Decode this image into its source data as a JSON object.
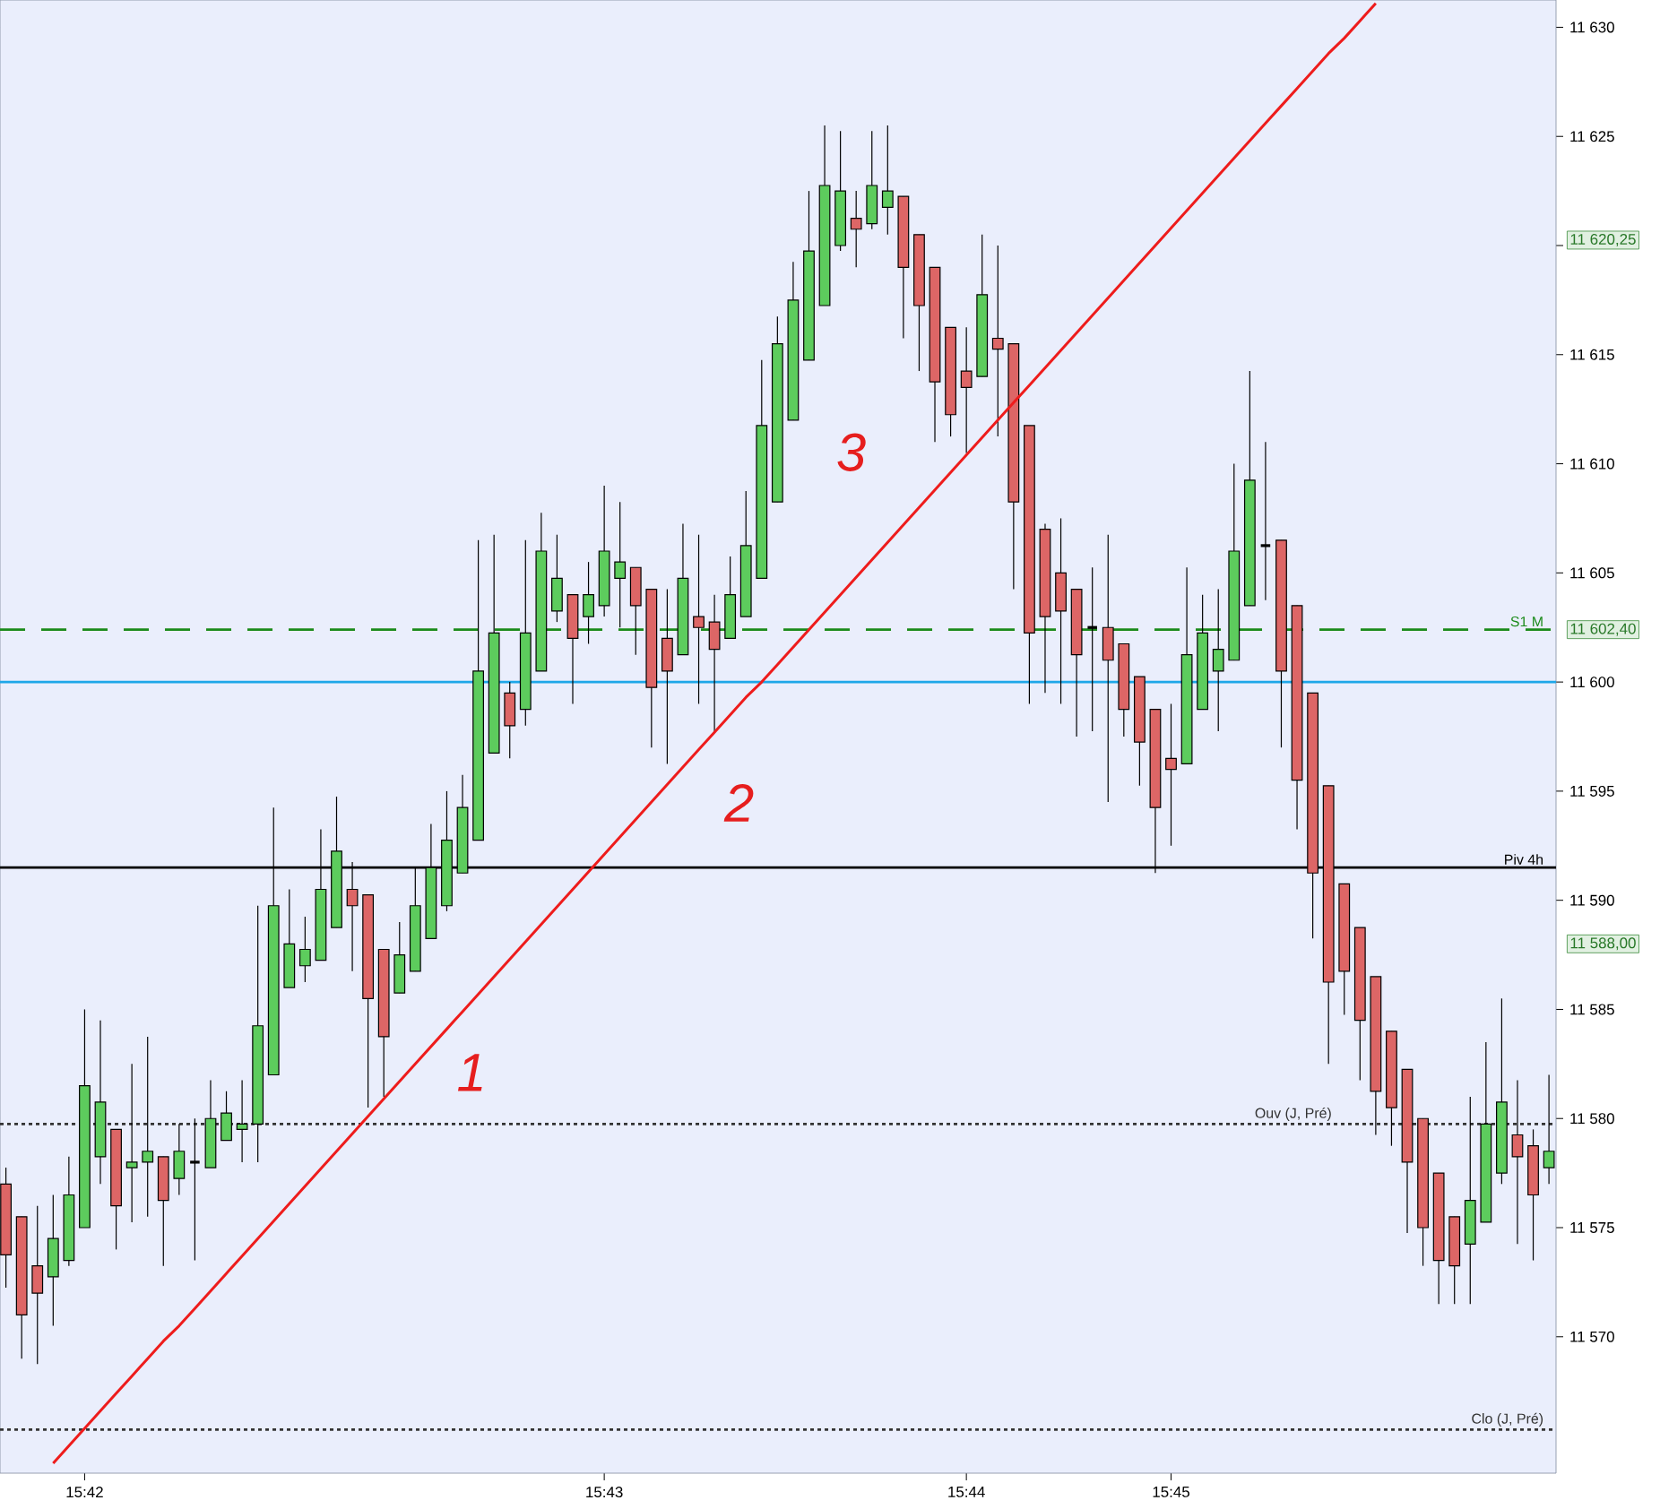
{
  "chart_data": {
    "type": "candlestick",
    "categories": [
      null,
      null,
      null,
      null,
      null,
      "15:42",
      null,
      null,
      null,
      null,
      null,
      null,
      null,
      null,
      null,
      null,
      null,
      null,
      null,
      null,
      null,
      null,
      null,
      null,
      null,
      null,
      null,
      null,
      null,
      null,
      null,
      null,
      null,
      null,
      null,
      null,
      null,
      null,
      "15:43",
      null,
      null,
      null,
      null,
      null,
      null,
      null,
      null,
      null,
      null,
      null,
      null,
      null,
      null,
      null,
      null,
      null,
      null,
      null,
      null,
      null,
      null,
      "15:44",
      null,
      null,
      null,
      null,
      null,
      null,
      null,
      null,
      null,
      null,
      null,
      null,
      "15:45",
      null,
      null,
      null,
      null,
      null,
      null,
      null,
      null,
      null,
      null,
      null,
      null,
      null,
      null,
      null,
      null,
      null,
      null,
      null,
      null,
      null,
      null,
      null,
      null
    ],
    "ohlc": [
      [
        11577,
        11577.75,
        11572.25,
        11573.75
      ],
      [
        11575.5,
        11575.5,
        11569,
        11571
      ],
      [
        11573.25,
        11576,
        11568.75,
        11572
      ],
      [
        11572.75,
        11576.5,
        11570.5,
        11574.5
      ],
      [
        11573.5,
        11578.25,
        11573.25,
        11576.5
      ],
      [
        11575,
        11585,
        11575,
        11581.5
      ],
      [
        11578.25,
        11584.5,
        11577,
        11580.75
      ],
      [
        11579.5,
        11579.5,
        11574,
        11576
      ],
      [
        11577.75,
        11582.5,
        11575.25,
        11578
      ],
      [
        11578,
        11583.75,
        11575.5,
        11578.5
      ],
      [
        11578.25,
        11578.25,
        11573.25,
        11576.25
      ],
      [
        11577.25,
        11579.75,
        11576.5,
        11578.5
      ],
      [
        11578,
        11580,
        11573.5,
        11578
      ],
      [
        11577.75,
        11581.75,
        11577.75,
        11580
      ],
      [
        11579,
        11581.25,
        11579,
        11580.25
      ],
      [
        11579.5,
        11581.75,
        11578,
        11579.75
      ],
      [
        11579.75,
        11589.75,
        11578,
        11584.25
      ],
      [
        11582,
        11594.25,
        11582,
        11589.75
      ],
      [
        11586,
        11590.5,
        11586,
        11588
      ],
      [
        11587,
        11589.25,
        11586.25,
        11587.75
      ],
      [
        11587.25,
        11593.25,
        11587.25,
        11590.5
      ],
      [
        11588.75,
        11594.75,
        11588.75,
        11592.25
      ],
      [
        11590.5,
        11591.75,
        11586.75,
        11589.75
      ],
      [
        11590.25,
        11590.25,
        11580.5,
        11585.5
      ],
      [
        11587.75,
        11587.75,
        11581,
        11583.75
      ],
      [
        11585.75,
        11589,
        11585.75,
        11587.5
      ],
      [
        11586.75,
        11591.5,
        11586.75,
        11589.75
      ],
      [
        11588.25,
        11593.5,
        11588.25,
        11591.5
      ],
      [
        11589.75,
        11595,
        11589.5,
        11592.75
      ],
      [
        11591.25,
        11595.75,
        11591.25,
        11594.25
      ],
      [
        11592.75,
        11606.5,
        11592.75,
        11600.5
      ],
      [
        11596.75,
        11606.75,
        11596.75,
        11602.25
      ],
      [
        11599.5,
        11600,
        11596.5,
        11598
      ],
      [
        11598.75,
        11606.5,
        11598,
        11602.25
      ],
      [
        11600.5,
        11607.75,
        11600.5,
        11606
      ],
      [
        11603.25,
        11606.75,
        11602.75,
        11604.75
      ],
      [
        11604,
        11604,
        11599,
        11602
      ],
      [
        11603,
        11605.5,
        11601.75,
        11604
      ],
      [
        11603.5,
        11609,
        11603,
        11606
      ],
      [
        11604.75,
        11608.25,
        11602.5,
        11605.5
      ],
      [
        11605.25,
        11605.25,
        11601.25,
        11603.5
      ],
      [
        11604.25,
        11604.25,
        11597,
        11599.75
      ],
      [
        11602,
        11604.25,
        11596.25,
        11600.5
      ],
      [
        11601.25,
        11607.25,
        11601.25,
        11604.75
      ],
      [
        11603,
        11606.75,
        11599,
        11602.5
      ],
      [
        11602.75,
        11604,
        11597.75,
        11601.5
      ],
      [
        11602,
        11605.75,
        11602,
        11604
      ],
      [
        11603,
        11608.75,
        11603,
        11606.25
      ],
      [
        11604.75,
        11614.75,
        11604.75,
        11611.75
      ],
      [
        11608.25,
        11616.75,
        11608.25,
        11615.5
      ],
      [
        11612,
        11619.25,
        11612,
        11617.5
      ],
      [
        11614.75,
        11622.5,
        11614.75,
        11619.75
      ],
      [
        11617.25,
        11625.5,
        11617.25,
        11622.75
      ],
      [
        11620,
        11625.25,
        11619.75,
        11622.5
      ],
      [
        11621.25,
        11622.5,
        11619,
        11620.75
      ],
      [
        11621,
        11625.25,
        11620.75,
        11622.75
      ],
      [
        11621.75,
        11625.5,
        11620.5,
        11622.5
      ],
      [
        11622.25,
        11622.25,
        11615.75,
        11619
      ],
      [
        11620.5,
        11620.5,
        11614.25,
        11617.25
      ],
      [
        11619,
        11619,
        11611,
        11613.75
      ],
      [
        11616.25,
        11616.25,
        11611.25,
        11612.25
      ],
      [
        11614.25,
        11616.25,
        11610.5,
        11613.5
      ],
      [
        11614,
        11620.5,
        11614,
        11617.75
      ],
      [
        11615.75,
        11620,
        11611.25,
        11615.25
      ],
      [
        11615.5,
        11615.5,
        11604.25,
        11608.25
      ],
      [
        11611.75,
        11611.75,
        11599,
        11602.25
      ],
      [
        11607,
        11607.25,
        11599.5,
        11603
      ],
      [
        11605,
        11607.5,
        11599,
        11603.25
      ],
      [
        11604.25,
        11604.25,
        11597.5,
        11601.25
      ],
      [
        11602.5,
        11605.25,
        11597.75,
        11602.5
      ],
      [
        11602.5,
        11606.75,
        11594.5,
        11601
      ],
      [
        11601.75,
        11601.75,
        11597.5,
        11598.75
      ],
      [
        11600.25,
        11600.25,
        11595.25,
        11597.25
      ],
      [
        11598.75,
        11598.75,
        11591.25,
        11594.25
      ],
      [
        11596.5,
        11599,
        11592.5,
        11596
      ],
      [
        11596.25,
        11605.25,
        11596.25,
        11601.25
      ],
      [
        11598.75,
        11604,
        11598.75,
        11602.25
      ],
      [
        11600.5,
        11604.25,
        11597.75,
        11601.5
      ],
      [
        11601,
        11610,
        11601,
        11606
      ],
      [
        11603.5,
        11614.25,
        11603.5,
        11609.25
      ],
      [
        11606.25,
        11611,
        11603.75,
        11606.25
      ],
      [
        11606.5,
        11606.5,
        11597,
        11600.5
      ],
      [
        11603.5,
        11603.5,
        11593.25,
        11595.5
      ],
      [
        11599.5,
        11599.5,
        11588.25,
        11591.25
      ],
      [
        11595.25,
        11595.25,
        11582.5,
        11586.25
      ],
      [
        11590.75,
        11590.75,
        11584.75,
        11586.75
      ],
      [
        11588.75,
        11588.75,
        11581.75,
        11584.5
      ],
      [
        11586.5,
        11586.5,
        11579.25,
        11581.25
      ],
      [
        11584,
        11584,
        11578.75,
        11580.5
      ],
      [
        11582.25,
        11582.25,
        11574.75,
        11578
      ],
      [
        11580,
        11580,
        11573.25,
        11575
      ],
      [
        11577.5,
        11577.5,
        11571.5,
        11573.5
      ],
      [
        11575.5,
        11575.5,
        11571.5,
        11573.25
      ],
      [
        11574.25,
        11581,
        11571.5,
        11576.25
      ],
      [
        11575.25,
        11583.5,
        11575.25,
        11579.75
      ],
      [
        11577.5,
        11585.5,
        11577,
        11580.75
      ],
      [
        11579.25,
        11581.75,
        11574.25,
        11578.25
      ],
      [
        11578.75,
        11579.5,
        11573.5,
        11576.5
      ],
      [
        11577.75,
        11582,
        11577,
        11578.5
      ]
    ],
    "colors": [
      "#dd6666",
      "#dd6666",
      "#dd6666",
      "#5dcc5d",
      "#5dcc5d",
      "#5dcc5d",
      "#5dcc5d",
      "#dd6666",
      "#5dcc5d",
      "#5dcc5d",
      "#dd6666",
      "#5dcc5d",
      "#000000",
      "#5dcc5d",
      "#5dcc5d",
      "#5dcc5d",
      "#5dcc5d",
      "#5dcc5d",
      "#5dcc5d",
      "#5dcc5d",
      "#5dcc5d",
      "#5dcc5d",
      "#dd6666",
      "#dd6666",
      "#dd6666",
      "#5dcc5d",
      "#5dcc5d",
      "#5dcc5d",
      "#5dcc5d",
      "#5dcc5d",
      "#5dcc5d",
      "#5dcc5d",
      "#dd6666",
      "#5dcc5d",
      "#5dcc5d",
      "#5dcc5d",
      "#dd6666",
      "#5dcc5d",
      "#5dcc5d",
      "#5dcc5d",
      "#dd6666",
      "#dd6666",
      "#dd6666",
      "#5dcc5d",
      "#dd6666",
      "#dd6666",
      "#5dcc5d",
      "#5dcc5d",
      "#5dcc5d",
      "#5dcc5d",
      "#5dcc5d",
      "#5dcc5d",
      "#5dcc5d",
      "#5dcc5d",
      "#dd6666",
      "#5dcc5d",
      "#5dcc5d",
      "#dd6666",
      "#dd6666",
      "#dd6666",
      "#dd6666",
      "#dd6666",
      "#5dcc5d",
      "#dd6666",
      "#dd6666",
      "#dd6666",
      "#dd6666",
      "#dd6666",
      "#dd6666",
      "#000000",
      "#dd6666",
      "#dd6666",
      "#dd6666",
      "#dd6666",
      "#dd6666",
      "#5dcc5d",
      "#5dcc5d",
      "#5dcc5d",
      "#5dcc5d",
      "#5dcc5d",
      "#000000",
      "#dd6666",
      "#dd6666",
      "#dd6666",
      "#dd6666",
      "#dd6666",
      "#dd6666",
      "#dd6666",
      "#dd6666",
      "#dd6666",
      "#dd6666",
      "#dd6666",
      "#dd6666",
      "#5dcc5d",
      "#5dcc5d",
      "#5dcc5d",
      "#dd6666",
      "#dd6666",
      "#5dcc5d"
    ],
    "series": [
      {
        "type": "line",
        "values": [
          null,
          null,
          null,
          11564.2,
          11565.0,
          11565.8,
          11566.6,
          11567.4,
          11568.2,
          11569.0,
          11569.8,
          11570.5,
          11571.3,
          11572.1,
          11572.9,
          11573.7,
          11574.5,
          11575.3,
          11576.1,
          11576.9,
          11577.7,
          11578.5,
          11579.3,
          11580.1,
          11580.9,
          11581.7,
          11582.5,
          11583.3,
          11584.1,
          11584.9,
          11585.7,
          11586.5,
          11587.3,
          11588.1,
          11588.9,
          11589.7,
          11590.5,
          11591.3,
          11592.1,
          11592.9,
          11593.7,
          11594.5,
          11595.3,
          11596.1,
          11596.9,
          11597.7,
          11598.5,
          11599.3,
          11600.0,
          11600.8,
          11601.6,
          11602.4,
          11603.2,
          11604.0,
          11604.8,
          11605.6,
          11606.4,
          11607.2,
          11608.0,
          11608.8,
          11609.6,
          11610.4,
          11611.2,
          11612.0,
          11612.8,
          11613.6,
          11614.4,
          11615.2,
          11616.0,
          11616.8,
          11617.6,
          11618.4,
          11619.2,
          11620.0,
          11620.8,
          11621.6,
          11622.4,
          11623.2,
          11624.0,
          11624.8,
          11625.6,
          11626.4,
          11627.2,
          11628.0,
          11628.8,
          11629.5,
          11630.3,
          11631.1,
          null,
          null,
          null,
          null,
          null,
          null,
          null,
          null,
          null,
          null,
          null
        ],
        "color": "#ee1c1c"
      }
    ],
    "ylim": [
      11563.75,
      11631.25
    ],
    "yticks": [
      {
        "value": 11570,
        "label": "11 570"
      },
      {
        "value": 11575,
        "label": "11 575"
      },
      {
        "value": 11580,
        "label": "11 580"
      },
      {
        "value": 11585,
        "label": "11 585"
      },
      {
        "value": 11590,
        "label": "11 590"
      },
      {
        "value": 11595,
        "label": "11 595"
      },
      {
        "value": 11600,
        "label": "11 600"
      },
      {
        "value": 11605,
        "label": "11 605"
      },
      {
        "value": 11610,
        "label": "11 610"
      },
      {
        "value": 11615,
        "label": "11 615"
      },
      {
        "value": 11620,
        "label": null
      },
      {
        "value": 11625,
        "label": "11 625"
      },
      {
        "value": 11630,
        "label": "11 630"
      }
    ],
    "ref_lines": [
      {
        "axis": "y",
        "value": 11602.4,
        "label": "S1 M",
        "color": "#1a8a1a",
        "line_style": "dashed"
      },
      {
        "axis": "y",
        "value": 11600,
        "label": null,
        "color": "#1ea7e8",
        "line_style": "solid"
      },
      {
        "axis": "y",
        "value": 11591.5,
        "label": "Piv 4h",
        "color": "#000000",
        "line_style": "solid"
      },
      {
        "axis": "y",
        "value": 11579.75,
        "label": "Ouv (J, Pré)",
        "color": "#333333",
        "line_style": "dotted"
      },
      {
        "axis": "y",
        "value": 11565.75,
        "label": "Clo (J, Pré)",
        "color": "#333333",
        "line_style": "dotted"
      }
    ],
    "annotations": [
      "11 620,25",
      "11 602,40",
      "11 588,00",
      "1",
      "2",
      "3"
    ],
    "grid": false
  }
}
